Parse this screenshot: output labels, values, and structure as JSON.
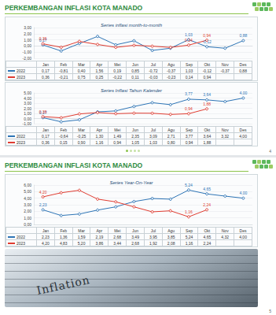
{
  "slides": [
    {
      "header": "PERKEMBANGAN INFLASI KOTA MANADO",
      "page": "4"
    },
    {
      "header": "PERKEMBANGAN INFLASI KOTA MANADO",
      "page": "5",
      "photo_text": "Inflation"
    }
  ],
  "chart_data": [
    {
      "type": "line",
      "title": "Series inflasi month-to-month",
      "categories": [
        "Jan",
        "Feb",
        "Mar",
        "Apr",
        "Mei",
        "Jun",
        "Jul",
        "Agu",
        "Sep",
        "Okt",
        "Nov",
        "Des"
      ],
      "series": [
        {
          "name": "2022",
          "color": "#2e75b6",
          "marker": "circle",
          "values": [
            0.17,
            -0.81,
            0.4,
            1.56,
            0.19,
            0.85,
            -0.72,
            -0.37,
            1.03,
            -0.12,
            -0.37,
            0.88
          ],
          "value_labels": [
            "0,17",
            null,
            null,
            null,
            null,
            null,
            null,
            null,
            "1,03",
            "-0,12",
            null,
            "0,88"
          ],
          "cells": [
            "0,17",
            "-0,81",
            "0,40",
            "1,56",
            "0,19",
            "0,85",
            "-0,72",
            "-0,37",
            "1,03",
            "-0,12",
            "-0,37",
            "0,88"
          ]
        },
        {
          "name": "2023",
          "color": "#e03c31",
          "marker": "circle",
          "values": [
            0.36,
            -0.21,
            0.75,
            0.25,
            -0.22,
            0.11,
            -0.03,
            -0.23,
            0.14,
            0.94,
            null,
            null
          ],
          "value_labels": [
            "0,36",
            null,
            null,
            null,
            null,
            null,
            null,
            null,
            "0,14",
            "0,94",
            null,
            null
          ],
          "cells": [
            "0,36",
            "-0,21",
            "0,75",
            "0,25",
            "-0,22",
            "0,11",
            "-0,03",
            "-0,23",
            "0,14",
            "0,94",
            null,
            null
          ]
        }
      ],
      "ylim": [
        -2,
        3
      ],
      "yticks": [
        {
          "value": -2,
          "label": "-2,00"
        },
        {
          "value": -1,
          "label": "-1,00"
        },
        {
          "value": 0,
          "label": "0,00"
        },
        {
          "value": 1,
          "label": "1,00"
        },
        {
          "value": 2,
          "label": "2,00"
        },
        {
          "value": 3,
          "label": "3,00"
        }
      ],
      "grid": true,
      "data_labels": true
    },
    {
      "type": "line",
      "title": "Series Inflasi Tahun Kalender",
      "categories": [
        "Jan",
        "Feb",
        "Mar",
        "Apr",
        "Mei",
        "Jun",
        "Jul",
        "Agu",
        "Sep",
        "Okt",
        "Nov",
        "Des"
      ],
      "series": [
        {
          "name": "2022",
          "color": "#2e75b6",
          "marker": "circle",
          "values": [
            0.17,
            -0.64,
            -0.25,
            1.3,
            1.49,
            2.35,
            3.09,
            2.71,
            3.77,
            3.64,
            3.32,
            4.0
          ],
          "value_labels": [
            "0,17",
            null,
            null,
            null,
            null,
            null,
            null,
            null,
            "3,77",
            "3,64",
            null,
            "4,00"
          ],
          "cells": [
            "0,17",
            "-0,64",
            "-0,25",
            "1,30",
            "1,49",
            "2,35",
            "3,09",
            "2,71",
            "3,77",
            "3,64",
            "3,32",
            "4,00"
          ]
        },
        {
          "name": "2023",
          "color": "#e03c31",
          "marker": "circle",
          "values": [
            0.36,
            0.15,
            0.9,
            1.16,
            0.94,
            1.05,
            1.03,
            0.8,
            0.94,
            1.88,
            null,
            null
          ],
          "value_labels": [
            "0,36",
            null,
            null,
            null,
            null,
            null,
            null,
            null,
            "0,94",
            "1,88",
            null,
            null
          ],
          "cells": [
            "0,36",
            "0,15",
            "0,90",
            "1,16",
            "0,94",
            "1,05",
            "1,03",
            "0,80",
            "0,94",
            "1,88",
            null,
            null
          ]
        }
      ],
      "ylim": [
        -1,
        5
      ],
      "yticks": [
        {
          "value": -1,
          "label": "-1,00"
        },
        {
          "value": 0,
          "label": "0,00"
        },
        {
          "value": 1,
          "label": "1,00"
        },
        {
          "value": 2,
          "label": "2,00"
        },
        {
          "value": 3,
          "label": "3,00"
        },
        {
          "value": 4,
          "label": "4,00"
        },
        {
          "value": 5,
          "label": "5,00"
        }
      ],
      "grid": true,
      "data_labels": true
    },
    {
      "type": "line",
      "title": "Series Year-On-Year",
      "categories": [
        "Jan",
        "Feb",
        "Mar",
        "Apr",
        "Mei",
        "Jun",
        "Jul",
        "Agu",
        "Sep",
        "Okt",
        "Nov",
        "Des"
      ],
      "series": [
        {
          "name": "2022",
          "color": "#2e75b6",
          "marker": "circle",
          "values": [
            2.23,
            1.36,
            1.59,
            2.19,
            2.68,
            3.49,
            3.95,
            3.85,
            5.24,
            4.65,
            4.32,
            4.0
          ],
          "value_labels": [
            "2,23",
            null,
            null,
            null,
            null,
            null,
            null,
            null,
            "5,24",
            "4,65",
            null,
            "4,00"
          ],
          "cells": [
            "2,23",
            "1,36",
            "1,59",
            "2,19",
            "2,68",
            "3,49",
            "3,95",
            "3,85",
            "5,24",
            "4,65",
            "4,32",
            "4,00"
          ]
        },
        {
          "name": "2023",
          "color": "#e03c31",
          "marker": "circle",
          "values": [
            4.2,
            4.83,
            5.2,
            3.86,
            3.44,
            2.68,
            1.92,
            2.08,
            1.16,
            2.24,
            null,
            null
          ],
          "value_labels": [
            "4,20",
            null,
            null,
            null,
            null,
            null,
            null,
            null,
            "1,16",
            "2,24",
            null,
            null
          ],
          "cells": [
            "4,20",
            "4,83",
            "5,20",
            "3,86",
            "3,44",
            "2,68",
            "1,92",
            "2,08",
            "1,16",
            "2,24",
            null,
            null
          ]
        }
      ],
      "ylim": [
        0,
        6
      ],
      "yticks": [
        {
          "value": 0,
          "label": "0,00"
        },
        {
          "value": 1,
          "label": "1,00"
        },
        {
          "value": 2,
          "label": "2,00"
        },
        {
          "value": 3,
          "label": "3,00"
        },
        {
          "value": 4,
          "label": "4,00"
        },
        {
          "value": 5,
          "label": "5,00"
        },
        {
          "value": 6,
          "label": "6,00"
        }
      ],
      "grid": true,
      "data_labels": true
    }
  ]
}
